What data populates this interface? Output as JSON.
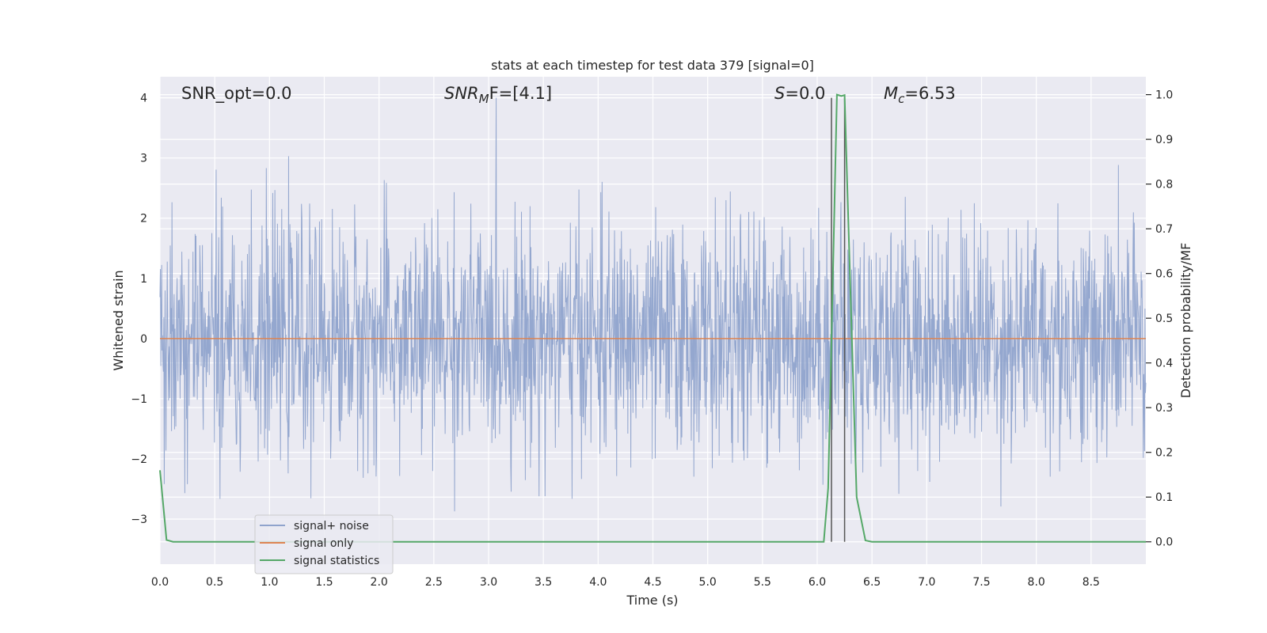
{
  "chart_data": {
    "type": "line",
    "title": "stats at each timestep for test data 379 [signal=0]",
    "xlabel": "Time (s)",
    "ylabel": "Whitened strain",
    "y2label": "Detection probability/MF",
    "xlim": [
      0,
      9
    ],
    "ylim": [
      -3.75,
      4.35
    ],
    "y2lim": [
      -0.05,
      1.04
    ],
    "xticks": [
      "0.0",
      "0.5",
      "1.0",
      "1.5",
      "2.0",
      "2.5",
      "3.0",
      "3.5",
      "4.0",
      "4.5",
      "5.0",
      "5.5",
      "6.0",
      "6.5",
      "7.0",
      "7.5",
      "8.0",
      "8.5"
    ],
    "xtick_values": [
      0,
      0.5,
      1,
      1.5,
      2,
      2.5,
      3,
      3.5,
      4,
      4.5,
      5,
      5.5,
      6,
      6.5,
      7,
      7.5,
      8,
      8.5
    ],
    "yticks": [
      "4",
      "3",
      "2",
      "1",
      "0",
      "−1",
      "−2",
      "−3"
    ],
    "ytick_values": [
      4,
      3,
      2,
      1,
      0,
      -1,
      -2,
      -3
    ],
    "y2ticks": [
      "1.0",
      "0.9",
      "0.8",
      "0.7",
      "0.6",
      "0.5",
      "0.4",
      "0.3",
      "0.2",
      "0.1",
      "0.0"
    ],
    "y2tick_values": [
      1.0,
      0.9,
      0.8,
      0.7,
      0.6,
      0.5,
      0.4,
      0.3,
      0.2,
      0.1,
      0.0
    ],
    "grid": true,
    "legend_position": "lower-left",
    "annotations": {
      "snr_opt": "SNR_opt=0.0",
      "snr_mf_base": "SNR",
      "snr_mf_sub": "M",
      "snr_mf_rest": "F=[4.1]",
      "s_var": "S",
      "s_rest": "=0.0",
      "mc_var": "M",
      "mc_sub": "c",
      "mc_rest": "=6.53"
    },
    "vlines": [
      6.13,
      6.25
    ],
    "series": [
      {
        "name": "signal+ noise",
        "color": "#8fa3cc",
        "kind": "noise",
        "n": 2300,
        "std": 0.95,
        "max": 4.0,
        "min": -3.42
      },
      {
        "name": "signal only",
        "color": "#dd8452",
        "kind": "constant",
        "value": 0
      },
      {
        "name": "signal statistics",
        "color": "#55a868",
        "kind": "line",
        "axis": "right",
        "x": [
          0.0,
          0.06,
          0.12,
          6.06,
          6.1,
          6.18,
          6.22,
          6.25,
          6.28,
          6.36,
          6.44,
          6.5,
          9.0
        ],
        "y": [
          0.16,
          0.004,
          0.0,
          0.0,
          0.12,
          1.0,
          0.997,
          0.999,
          0.75,
          0.1,
          0.003,
          0.0,
          0.0
        ]
      }
    ]
  }
}
